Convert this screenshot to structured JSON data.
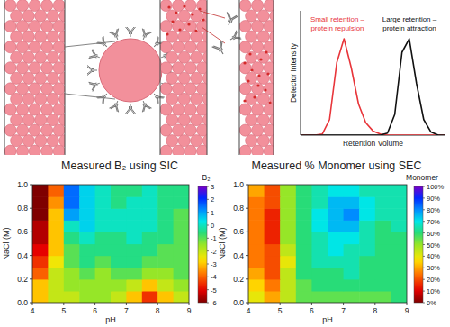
{
  "chart_data": [
    {
      "type": "line",
      "x_label": "Retention Volume",
      "y_label": "Detector Intensity",
      "x": [
        0,
        0.5,
        1,
        1.5,
        2,
        2.5,
        3,
        3.5,
        4,
        4.5,
        5,
        5.5,
        6,
        6.5,
        7,
        7.5,
        8,
        8.5,
        9,
        9.5,
        10
      ],
      "series": [
        {
          "color": "#e8353a",
          "values": [
            0,
            0,
            0,
            0.1,
            1.5,
            7,
            9.3,
            6.5,
            3,
            1.2,
            0.4,
            0.1,
            0,
            0,
            0,
            0,
            0,
            0,
            0,
            0,
            0
          ]
        },
        {
          "color": "#111111",
          "values": [
            0,
            0,
            0,
            0,
            0,
            0,
            0,
            0,
            0,
            0,
            0,
            0,
            0.2,
            2,
            8,
            9.3,
            5,
            1.5,
            0.3,
            0,
            0
          ]
        }
      ],
      "annotations": [
        [
          "Small retention –",
          "protein repulsion"
        ],
        [
          "Large retention –",
          "protein attraction"
        ]
      ],
      "xlim": [
        0,
        10
      ],
      "ylim": [
        0,
        12
      ],
      "tick_labels": false
    },
    {
      "type": "heatmap",
      "title": "Measured B₂ using SIC",
      "x_label": "pH",
      "y_label": "NaCl (M)",
      "x": [
        4.25,
        4.75,
        5.25,
        5.75,
        6.25,
        6.75,
        7.25,
        7.75,
        8.25,
        8.75
      ],
      "y": [
        0.05,
        0.15,
        0.25,
        0.35,
        0.45,
        0.55,
        0.65,
        0.75,
        0.85,
        0.95
      ],
      "values": [
        [
          -3,
          -2,
          -2,
          -1.5,
          -1.5,
          -2,
          -3,
          -4.5,
          -3,
          -2
        ],
        [
          -3,
          -2,
          -1.5,
          -1.5,
          -1.5,
          -1.5,
          -2,
          -3,
          -2,
          -1.5
        ],
        [
          -4,
          -2,
          -1.5,
          -1,
          -1.5,
          -1,
          -1,
          -1.5,
          -1.5,
          -1
        ],
        [
          -4.5,
          -2.5,
          -1,
          -0.5,
          -1,
          -0.5,
          -0.5,
          -1,
          -1,
          -1
        ],
        [
          -5,
          -3,
          -1,
          -0.5,
          -0.5,
          -0.5,
          -0.5,
          -0.5,
          -1,
          -1
        ],
        [
          -5.5,
          -3,
          -0.5,
          0,
          -0.5,
          -0.5,
          0,
          -0.5,
          -0.5,
          -1
        ],
        [
          -5.5,
          -3,
          0,
          0.5,
          0,
          0,
          0,
          0,
          -0.5,
          -1
        ],
        [
          -6,
          -3,
          1,
          0.5,
          0,
          0,
          0,
          0,
          -0.5,
          -1
        ],
        [
          -6,
          -3.5,
          1.5,
          0.5,
          0,
          -0.5,
          0,
          0,
          -0.5,
          -0.5
        ],
        [
          -6,
          -4,
          1.5,
          0.5,
          0,
          -0.5,
          -0.5,
          0,
          -0.5,
          -0.5
        ]
      ],
      "xlim": [
        4,
        9
      ],
      "ylim": [
        0,
        1
      ],
      "xticks": [
        4,
        5,
        6,
        7,
        8,
        9
      ],
      "yticks": [
        {
          "value": 0,
          "label": "0.0"
        },
        0.2,
        0.4,
        0.6,
        0.8,
        {
          "value": 1,
          "label": "1.0"
        }
      ],
      "colorbar": {
        "label": "B₂",
        "range": [
          -6,
          3
        ],
        "ticks": [
          3,
          2,
          1,
          0,
          -1,
          -2,
          -3,
          -4,
          -5,
          -6
        ]
      }
    },
    {
      "type": "heatmap",
      "title": "Measured % Monomer using SEC",
      "x_label": "pH",
      "y_label": "NaCl (M)",
      "x": [
        4.25,
        4.75,
        5.25,
        5.75,
        6.25,
        6.75,
        7.25,
        7.75,
        8.25,
        8.75
      ],
      "y": [
        0.05,
        0.15,
        0.25,
        0.35,
        0.45,
        0.55,
        0.65,
        0.75,
        0.85,
        0.95
      ],
      "values": [
        [
          40,
          30,
          45,
          55,
          55,
          55,
          55,
          55,
          55,
          60
        ],
        [
          35,
          25,
          45,
          55,
          60,
          60,
          60,
          60,
          60,
          60
        ],
        [
          30,
          20,
          45,
          60,
          60,
          60,
          65,
          60,
          60,
          60
        ],
        [
          25,
          20,
          40,
          60,
          65,
          65,
          65,
          60,
          60,
          60
        ],
        [
          25,
          20,
          45,
          60,
          65,
          70,
          65,
          65,
          60,
          60
        ],
        [
          25,
          15,
          50,
          60,
          65,
          70,
          70,
          65,
          60,
          60
        ],
        [
          25,
          15,
          50,
          60,
          70,
          75,
          75,
          65,
          60,
          65
        ],
        [
          25,
          15,
          50,
          60,
          70,
          75,
          80,
          70,
          65,
          65
        ],
        [
          25,
          20,
          50,
          60,
          65,
          75,
          75,
          70,
          65,
          65
        ],
        [
          30,
          20,
          50,
          60,
          65,
          70,
          70,
          65,
          65,
          65
        ]
      ],
      "xlim": [
        4,
        9
      ],
      "ylim": [
        0,
        1
      ],
      "xticks": [
        4,
        5,
        6,
        7,
        8,
        9
      ],
      "yticks": [
        {
          "value": 0,
          "label": "0.0"
        },
        0.2,
        0.4,
        0.6,
        0.8,
        {
          "value": 1,
          "label": "1.0"
        }
      ],
      "colorbar": {
        "label": "Monomer",
        "range": [
          0,
          100
        ],
        "ticks": [
          {
            "value": 100,
            "label": "100%"
          },
          {
            "value": 90,
            "label": "90%"
          },
          {
            "value": 80,
            "label": "80%"
          },
          {
            "value": 70,
            "label": "70%"
          },
          {
            "value": 60,
            "label": "60%"
          },
          {
            "value": 50,
            "label": "50%"
          },
          {
            "value": 40,
            "label": "40%"
          },
          {
            "value": 30,
            "label": "30%"
          },
          {
            "value": 20,
            "label": "20%"
          },
          {
            "value": 10,
            "label": "10%"
          },
          {
            "value": 0,
            "label": "0%"
          }
        ]
      }
    }
  ]
}
